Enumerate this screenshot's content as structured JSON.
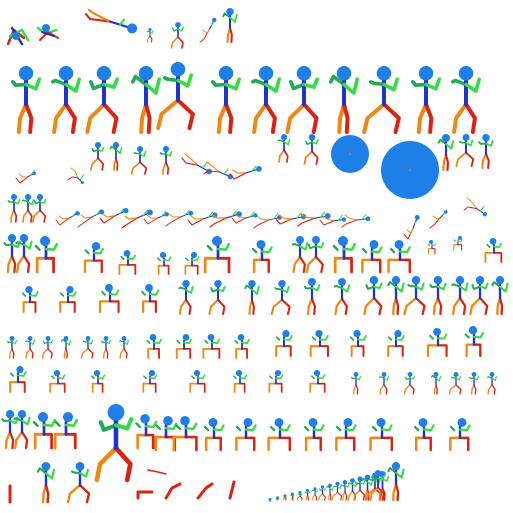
{
  "sprite_sheet": {
    "background": "#ffffff",
    "palette": {
      "head": "#1e7fe8",
      "spine": "#2233cc",
      "arm_near": "#33dd44",
      "arm_far": "#22aa55",
      "leg_near": "#dd2211",
      "leg_far": "#ee8811",
      "joint": "#8822cc"
    },
    "frames_per_row": [
      5,
      12,
      18,
      20,
      16,
      24,
      25,
      28,
      24,
      22,
      18
    ],
    "pose_style": "stick-figure animation frames (idle, walk, run, jump, crouch, tumble)"
  }
}
